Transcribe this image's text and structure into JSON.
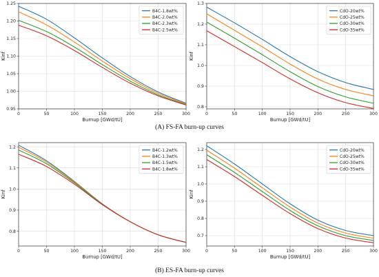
{
  "captions": {
    "a": "(A) FS-FA burn-up curves",
    "b": "(B) ES-FA burn-up curves"
  },
  "chart_data": [
    {
      "id": "fs-b4c",
      "type": "line",
      "xlabel": "Burnup [GWd/tU]",
      "ylabel": "Kinf",
      "xlim": [
        0,
        300
      ],
      "ylim": [
        0.95,
        1.25
      ],
      "xticks": [
        0,
        50,
        100,
        150,
        200,
        250,
        300
      ],
      "yticks": [
        0.95,
        1.0,
        1.05,
        1.1,
        1.15,
        1.2,
        1.25
      ],
      "ytick_decimals": 2,
      "grid": true,
      "legend": "top-right",
      "x": [
        0,
        50,
        100,
        150,
        200,
        250,
        300
      ],
      "series": [
        {
          "name": "B4C-1.8wt%",
          "color": "#1f77b4",
          "values": [
            1.242,
            1.205,
            1.152,
            1.095,
            1.042,
            0.998,
            0.966
          ]
        },
        {
          "name": "B4C-2.0wt%",
          "color": "#ff7f0e",
          "values": [
            1.226,
            1.189,
            1.14,
            1.086,
            1.036,
            0.994,
            0.964
          ]
        },
        {
          "name": "B4C-2.3wt%",
          "color": "#2ca02c",
          "values": [
            1.202,
            1.17,
            1.126,
            1.076,
            1.029,
            0.99,
            0.962
          ]
        },
        {
          "name": "B4C-2.5wt%",
          "color": "#d62728",
          "values": [
            1.188,
            1.158,
            1.116,
            1.068,
            1.023,
            0.987,
            0.961
          ]
        }
      ]
    },
    {
      "id": "fs-cdo",
      "type": "line",
      "xlabel": "Burnup [GWd/tU]",
      "ylabel": "Kinf",
      "xlim": [
        0,
        300
      ],
      "ylim": [
        0.79,
        1.3
      ],
      "xticks": [
        0,
        50,
        100,
        150,
        200,
        250,
        300
      ],
      "yticks": [
        0.8,
        0.9,
        1.0,
        1.1,
        1.2,
        1.3
      ],
      "ytick_decimals": 1,
      "grid": true,
      "legend": "top-right",
      "x": [
        0,
        50,
        100,
        150,
        200,
        250,
        300
      ],
      "series": [
        {
          "name": "CdO-20wt%",
          "color": "#1f77b4",
          "values": [
            1.282,
            1.206,
            1.126,
            1.043,
            0.97,
            0.917,
            0.884
          ]
        },
        {
          "name": "CdO-25wt%",
          "color": "#ff7f0e",
          "values": [
            1.25,
            1.17,
            1.09,
            1.007,
            0.934,
            0.884,
            0.853
          ]
        },
        {
          "name": "CdO-30wt%",
          "color": "#2ca02c",
          "values": [
            1.21,
            1.132,
            1.052,
            0.97,
            0.898,
            0.848,
            0.817
          ]
        },
        {
          "name": "CdO-35wt%",
          "color": "#d62728",
          "values": [
            1.168,
            1.091,
            1.014,
            0.935,
            0.868,
            0.82,
            0.792
          ]
        }
      ]
    },
    {
      "id": "es-b4c",
      "type": "line",
      "xlabel": "Burnup [GWd/tU]",
      "ylabel": "Kinf",
      "xlim": [
        0,
        300
      ],
      "ylim": [
        0.73,
        1.22
      ],
      "xticks": [
        0,
        50,
        100,
        150,
        200,
        250,
        300
      ],
      "yticks": [
        0.8,
        0.9,
        1.0,
        1.1,
        1.2
      ],
      "ytick_decimals": 1,
      "grid": true,
      "legend": "top-right",
      "x": [
        0,
        50,
        100,
        150,
        200,
        250,
        300
      ],
      "series": [
        {
          "name": "B4C-1.2wt%",
          "color": "#1f77b4",
          "values": [
            1.208,
            1.134,
            1.036,
            0.93,
            0.845,
            0.783,
            0.747
          ]
        },
        {
          "name": "B4C-1.3wt%",
          "color": "#ff7f0e",
          "values": [
            1.198,
            1.128,
            1.033,
            0.929,
            0.845,
            0.783,
            0.747
          ]
        },
        {
          "name": "B4C-1.5wt%",
          "color": "#2ca02c",
          "values": [
            1.185,
            1.12,
            1.029,
            0.928,
            0.845,
            0.783,
            0.747
          ]
        },
        {
          "name": "B4C-1.8wt%",
          "color": "#d62728",
          "values": [
            1.165,
            1.107,
            1.023,
            0.926,
            0.845,
            0.783,
            0.747
          ]
        }
      ]
    },
    {
      "id": "es-cdo",
      "type": "line",
      "xlabel": "Burnup [GWd/tU]",
      "ylabel": "Kinf",
      "xlim": [
        0,
        300
      ],
      "ylim": [
        0.64,
        1.24
      ],
      "xticks": [
        0,
        50,
        100,
        150,
        200,
        250,
        300
      ],
      "yticks": [
        0.7,
        0.8,
        0.9,
        1.0,
        1.1,
        1.2
      ],
      "ytick_decimals": 1,
      "grid": true,
      "legend": "top-right",
      "x": [
        0,
        50,
        100,
        150,
        200,
        250,
        300
      ],
      "series": [
        {
          "name": "CdO-20wt%",
          "color": "#1f77b4",
          "values": [
            1.222,
            1.116,
            1.0,
            0.885,
            0.79,
            0.73,
            0.7
          ]
        },
        {
          "name": "CdO-25wt%",
          "color": "#ff7f0e",
          "values": [
            1.196,
            1.092,
            0.978,
            0.866,
            0.773,
            0.715,
            0.685
          ]
        },
        {
          "name": "CdO-30wt%",
          "color": "#2ca02c",
          "values": [
            1.17,
            1.067,
            0.956,
            0.846,
            0.757,
            0.7,
            0.672
          ]
        },
        {
          "name": "CdO-35wt%",
          "color": "#d62728",
          "values": [
            1.142,
            1.043,
            0.934,
            0.828,
            0.741,
            0.686,
            0.659
          ]
        }
      ]
    }
  ]
}
